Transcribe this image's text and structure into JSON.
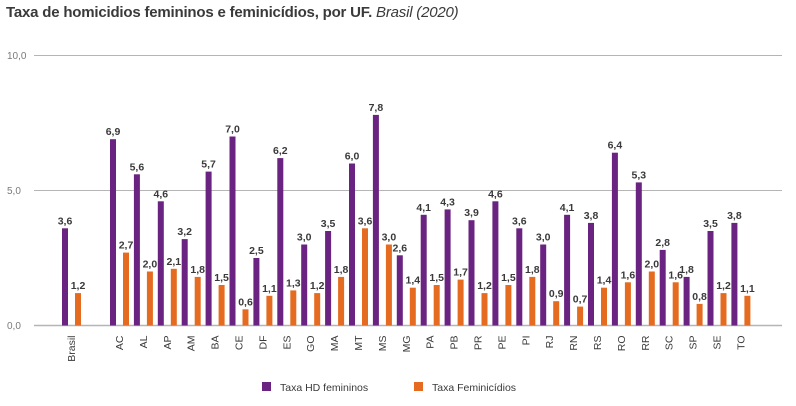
{
  "title": {
    "main": "Taxa de homicidios femininos e feminicídios, por UF.",
    "sub": "Brasil (2020)"
  },
  "colors": {
    "hd": "#6a2380",
    "fem": "#e46b1f",
    "grid": "#b5b5b5"
  },
  "chart_data": {
    "type": "bar",
    "title": "Taxa de homicidios femininos e feminicídios, por UF. Brasil (2020)",
    "xlabel": "",
    "ylabel": "",
    "ylim": [
      0,
      10
    ],
    "yticks": [
      0,
      5,
      10
    ],
    "ytick_labels": [
      "0,0",
      "5,0",
      "10,0"
    ],
    "grid": true,
    "legend_position": "bottom-center",
    "categories": [
      "Brasil",
      "AC",
      "AL",
      "AP",
      "AM",
      "BA",
      "CE",
      "DF",
      "ES",
      "GO",
      "MA",
      "MT",
      "MS",
      "MG",
      "PA",
      "PB",
      "PR",
      "PE",
      "PI",
      "RJ",
      "RN",
      "RS",
      "RO",
      "RR",
      "SC",
      "SP",
      "SE",
      "TO"
    ],
    "series": [
      {
        "name": "Taxa HD femininos",
        "values": [
          3.6,
          6.9,
          5.6,
          4.6,
          3.2,
          5.7,
          7.0,
          2.5,
          6.2,
          3.0,
          3.5,
          6.0,
          7.8,
          2.6,
          4.1,
          4.3,
          3.9,
          4.6,
          3.6,
          3.0,
          4.1,
          3.8,
          6.4,
          5.3,
          2.8,
          1.8,
          3.5,
          3.8
        ],
        "labels": [
          "3,6",
          "6,9",
          "5,6",
          "4,6",
          "3,2",
          "5,7",
          "7,0",
          "2,5",
          "6,2",
          "3,0",
          "3,5",
          "6,0",
          "7,8",
          "2,6",
          "4,1",
          "4,3",
          "3,9",
          "4,6",
          "3,6",
          "3,0",
          "4,1",
          "3,8",
          "6,4",
          "5,3",
          "2,8",
          "1,8",
          "3,5",
          "3,8"
        ]
      },
      {
        "name": "Taxa Feminicídios",
        "values": [
          1.2,
          2.7,
          2.0,
          2.1,
          1.8,
          1.5,
          0.6,
          1.1,
          1.3,
          1.2,
          1.8,
          3.6,
          3.0,
          1.4,
          1.5,
          1.7,
          1.2,
          1.5,
          1.8,
          0.9,
          0.7,
          1.4,
          1.6,
          2.0,
          1.6,
          0.8,
          1.2,
          1.1
        ],
        "labels": [
          "1,2",
          "2,7",
          "2,0",
          "2,1",
          "1,8",
          "1,5",
          "0,6",
          "1,1",
          "1,3",
          "1,2",
          "1,8",
          "3,6",
          "3,0",
          "1,4",
          "1,5",
          "1,7",
          "1,2",
          "1,5",
          "1,8",
          "0,9",
          "0,7",
          "1,4",
          "1,6",
          "2,0",
          "1,6",
          "0,8",
          "1,2",
          "1,1"
        ]
      }
    ]
  }
}
